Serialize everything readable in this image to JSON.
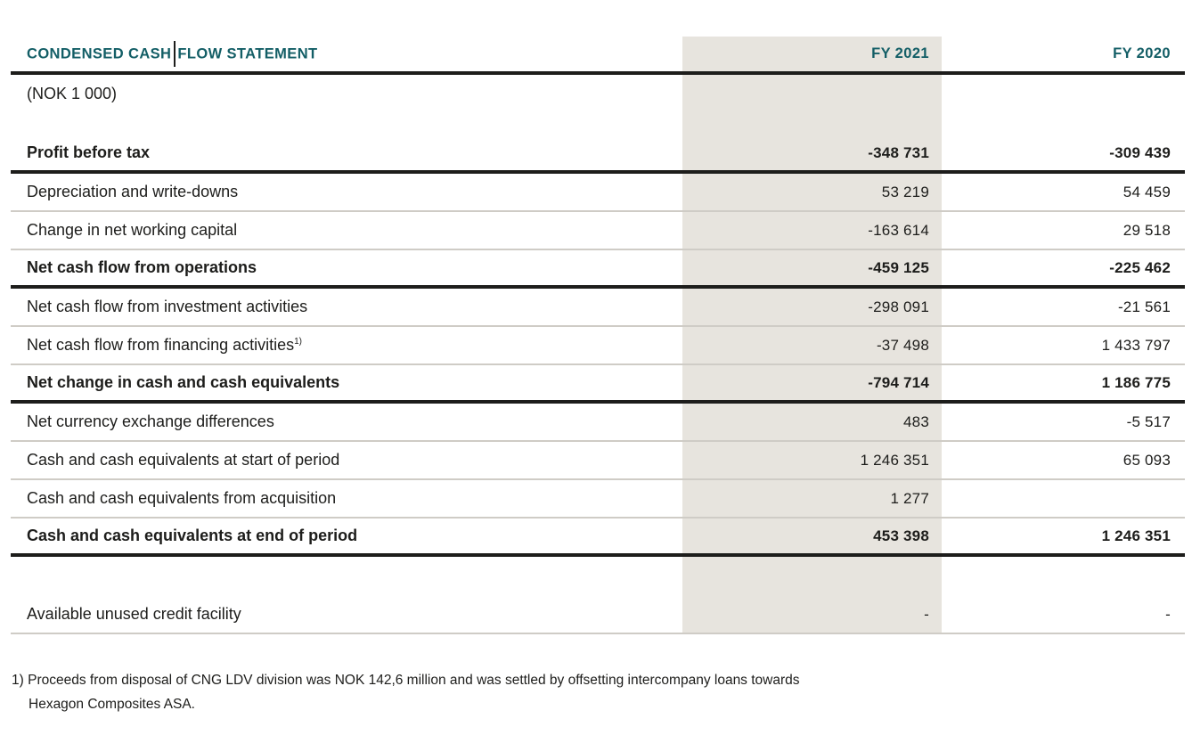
{
  "table": {
    "title_part1": "CONDENSED CASH",
    "title_part2": "FLOW STATEMENT",
    "unit_label": "(NOK 1 000)",
    "columns": {
      "fy2021": "FY 2021",
      "fy2020": "FY 2020"
    },
    "rows": [
      {
        "label": "Profit before tax",
        "fy2021": "-348 731",
        "fy2020": "-309 439"
      },
      {
        "label": "Depreciation and write-downs",
        "fy2021": "53 219",
        "fy2020": "54 459"
      },
      {
        "label": "Change in net working capital",
        "fy2021": "-163 614",
        "fy2020": "29 518"
      },
      {
        "label": "Net cash flow from operations",
        "fy2021": "-459 125",
        "fy2020": "-225 462"
      },
      {
        "label": "Net cash flow from investment activities",
        "fy2021": "-298 091",
        "fy2020": "-21 561"
      },
      {
        "label": "Net cash flow from financing activities",
        "footnote_ref": "1)",
        "fy2021": "-37 498",
        "fy2020": "1 433 797"
      },
      {
        "label": "Net change in cash and cash equivalents",
        "fy2021": "-794 714",
        "fy2020": "1 186 775"
      },
      {
        "label": "Net currency exchange differences",
        "fy2021": "483",
        "fy2020": "-5 517"
      },
      {
        "label": "Cash and cash equivalents at start of period",
        "fy2021": "1 246 351",
        "fy2020": "65 093"
      },
      {
        "label": "Cash and cash equivalents from acquisition",
        "fy2021": "1 277",
        "fy2020": ""
      },
      {
        "label": "Cash and cash equivalents at end of period",
        "fy2021": "453 398",
        "fy2020": "1 246 351"
      },
      {
        "label": "Available unused credit facility",
        "fy2021": "-",
        "fy2020": "-"
      }
    ]
  },
  "footnote": {
    "marker": "1)",
    "line1": "Proceeds from disposal of CNG LDV division was NOK 142,6 million and was settled by offsetting intercompany loans towards",
    "line2": "Hexagon Composites ASA."
  },
  "colors": {
    "accent_teal": "#135e66",
    "column_highlight": "#e7e4de",
    "thick_rule": "#1d1d1b",
    "thin_rule": "#cfccc6",
    "text": "#1d1d1b"
  }
}
